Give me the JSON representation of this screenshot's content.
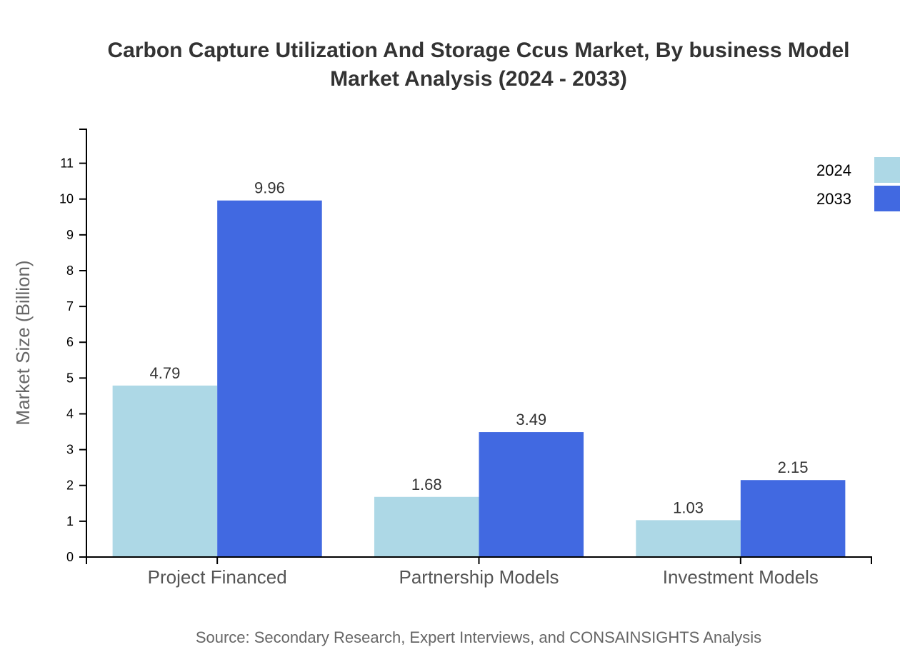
{
  "chart_data": {
    "type": "bar",
    "title_lines": [
      "Carbon Capture Utilization And Storage Ccus Market, By business Model",
      "Market Analysis (2024 - 2033)"
    ],
    "xlabel": "",
    "ylabel": "Market Size (Billion)",
    "categories": [
      "Project Financed",
      "Partnership Models",
      "Investment Models"
    ],
    "series": [
      {
        "name": "2024",
        "color": "#add8e6",
        "values": [
          4.79,
          1.68,
          1.03
        ]
      },
      {
        "name": "2033",
        "color": "#4169e1",
        "values": [
          9.96,
          3.49,
          2.15
        ]
      }
    ],
    "ylim": [
      0,
      11.95
    ],
    "yticks": [
      0,
      1,
      2,
      3,
      4,
      5,
      6,
      7,
      8,
      9,
      10,
      11
    ],
    "grid": false,
    "legend_position": "top-right",
    "data_labels": true,
    "source": "Source: Secondary Research, Expert Interviews, and CONSAINSIGHTS Analysis"
  }
}
